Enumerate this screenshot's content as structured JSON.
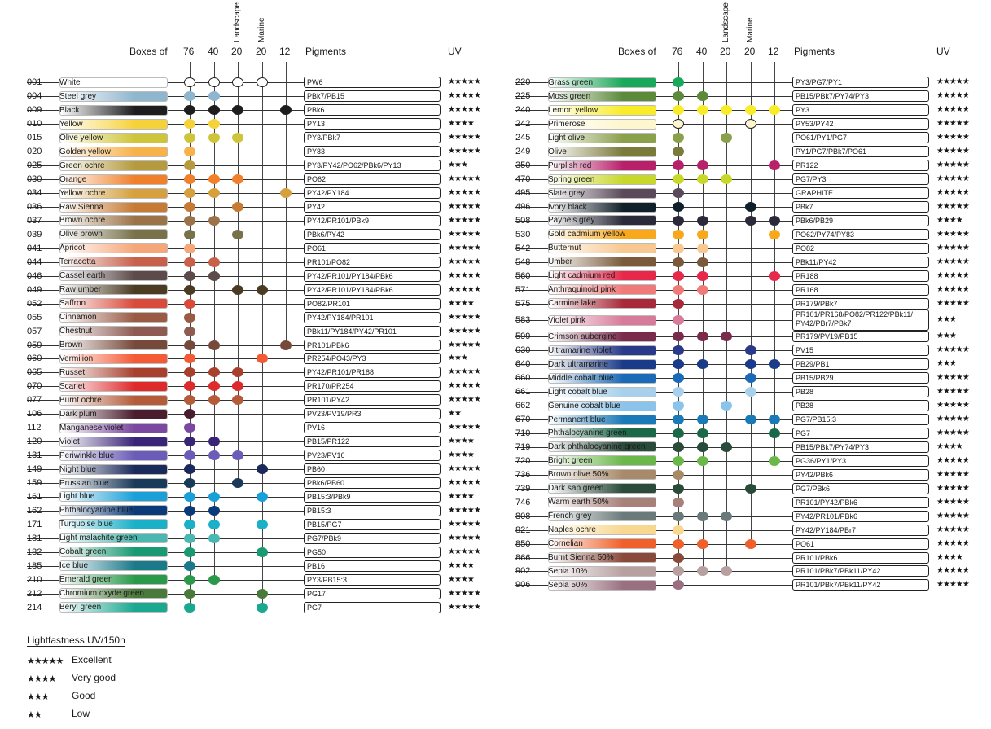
{
  "header": {
    "boxes_of": "Boxes of",
    "pigments": "Pigments",
    "uv": "UV",
    "box_76": "76",
    "box_40": "40",
    "box_20": "20",
    "box_20m": "20",
    "box_12": "12",
    "landscape": "Landscape",
    "marine": "Marine"
  },
  "legend": {
    "title": "Lightfastness UV/150h",
    "items": [
      {
        "stars": "★★★★★",
        "label": "Excellent"
      },
      {
        "stars": "★★★★",
        "label": "Very good"
      },
      {
        "stars": "★★★",
        "label": "Good"
      },
      {
        "stars": "★★",
        "label": "Low"
      }
    ]
  },
  "left_rows": [
    {
      "code": "001",
      "name": "White",
      "color": "#ffffff",
      "boxes": [
        1,
        1,
        1,
        1,
        0
      ],
      "pig": "PW6",
      "uv": "★★★★★"
    },
    {
      "code": "004",
      "name": "Steel grey",
      "color": "#8fb6cf",
      "boxes": [
        1,
        1,
        0,
        0,
        0
      ],
      "pig": "PBk7/PB15",
      "uv": "★★★★★"
    },
    {
      "code": "009",
      "name": "Black",
      "color": "#1d1d1d",
      "boxes": [
        1,
        1,
        1,
        0,
        1
      ],
      "pig": "PBk6",
      "uv": "★★★★★"
    },
    {
      "code": "010",
      "name": "Yellow",
      "color": "#f6d23a",
      "boxes": [
        1,
        1,
        0,
        0,
        0
      ],
      "pig": "PY13",
      "uv": "★★★★"
    },
    {
      "code": "015",
      "name": "Olive yellow",
      "color": "#cfc53a",
      "boxes": [
        1,
        1,
        1,
        0,
        0
      ],
      "pig": "PY3/PBk7",
      "uv": "★★★★★"
    },
    {
      "code": "020",
      "name": "Golden yellow",
      "color": "#f8b24a",
      "boxes": [
        1,
        0,
        0,
        0,
        0
      ],
      "pig": "PY83",
      "uv": "★★★★★"
    },
    {
      "code": "025",
      "name": "Green ochre",
      "color": "#b59a3e",
      "boxes": [
        1,
        0,
        0,
        0,
        0
      ],
      "pig": "PY3/PY42/PO62/PBk6/PY13",
      "uv": "★★★"
    },
    {
      "code": "030",
      "name": "Orange",
      "color": "#f0802a",
      "boxes": [
        1,
        1,
        1,
        0,
        0
      ],
      "pig": "PO62",
      "uv": "★★★★★"
    },
    {
      "code": "034",
      "name": "Yellow ochre",
      "color": "#d5a03d",
      "boxes": [
        1,
        1,
        0,
        0,
        1
      ],
      "pig": "PY42/PY184",
      "uv": "★★★★★"
    },
    {
      "code": "036",
      "name": "Raw Sienna",
      "color": "#c77a33",
      "boxes": [
        1,
        0,
        1,
        0,
        0
      ],
      "pig": "PY42",
      "uv": "★★★★★"
    },
    {
      "code": "037",
      "name": "Brown ochre",
      "color": "#9c7348",
      "boxes": [
        1,
        1,
        0,
        0,
        0
      ],
      "pig": "PY42/PR101/PBk9",
      "uv": "★★★★★"
    },
    {
      "code": "039",
      "name": "Olive brown",
      "color": "#78724a",
      "boxes": [
        1,
        0,
        1,
        0,
        0
      ],
      "pig": "PBk6/PY42",
      "uv": "★★★★★"
    },
    {
      "code": "041",
      "name": "Apricot",
      "color": "#f6a77a",
      "boxes": [
        1,
        0,
        0,
        0,
        0
      ],
      "pig": "PO61",
      "uv": "★★★★★"
    },
    {
      "code": "044",
      "name": "Terracotta",
      "color": "#c8614c",
      "boxes": [
        1,
        1,
        0,
        0,
        0
      ],
      "pig": "PR101/PO82",
      "uv": "★★★★★"
    },
    {
      "code": "046",
      "name": "Cassel earth",
      "color": "#5d4a4a",
      "boxes": [
        1,
        1,
        0,
        0,
        0
      ],
      "pig": "PY42/PR101/PY184/PBk6",
      "uv": "★★★★★"
    },
    {
      "code": "049",
      "name": "Raw umber",
      "color": "#4a3b22",
      "boxes": [
        1,
        0,
        1,
        1,
        0
      ],
      "pig": "PY42/PR101/PY184/PBk6",
      "uv": "★★★★★"
    },
    {
      "code": "052",
      "name": "Saffron",
      "color": "#d94a3a",
      "boxes": [
        1,
        0,
        0,
        0,
        0
      ],
      "pig": "PO82/PR101",
      "uv": "★★★★"
    },
    {
      "code": "055",
      "name": "Cinnamon",
      "color": "#9a5a44",
      "boxes": [
        1,
        0,
        0,
        0,
        0
      ],
      "pig": "PY42/PY184/PR101",
      "uv": "★★★★★"
    },
    {
      "code": "057",
      "name": "Chestnut",
      "color": "#8e5a52",
      "boxes": [
        1,
        0,
        0,
        0,
        0
      ],
      "pig": "PBk11/PY184/PY42/PR101",
      "uv": "★★★★★"
    },
    {
      "code": "059",
      "name": "Brown",
      "color": "#77493a",
      "boxes": [
        1,
        1,
        0,
        0,
        1
      ],
      "pig": "PR101/PBk6",
      "uv": "★★★★★"
    },
    {
      "code": "060",
      "name": "Vermilion",
      "color": "#f45a36",
      "boxes": [
        1,
        0,
        0,
        1,
        0
      ],
      "pig": "PR254/PO43/PY3",
      "uv": "★★★"
    },
    {
      "code": "065",
      "name": "Russet",
      "color": "#a8402e",
      "boxes": [
        1,
        1,
        1,
        0,
        0
      ],
      "pig": "PY42/PR101/PR188",
      "uv": "★★★★★"
    },
    {
      "code": "070",
      "name": "Scarlet",
      "color": "#de2a2a",
      "boxes": [
        1,
        1,
        1,
        0,
        0
      ],
      "pig": "PR170/PR254",
      "uv": "★★★★★"
    },
    {
      "code": "077",
      "name": "Burnt ochre",
      "color": "#b45c3a",
      "boxes": [
        1,
        1,
        1,
        0,
        0
      ],
      "pig": "PR101/PY42",
      "uv": "★★★★★"
    },
    {
      "code": "106",
      "name": "Dark plum",
      "color": "#4a1c2e",
      "boxes": [
        1,
        0,
        0,
        0,
        0
      ],
      "pig": "PV23/PV19/PR3",
      "uv": "★★"
    },
    {
      "code": "112",
      "name": "Manganese violet",
      "color": "#7a48a0",
      "boxes": [
        1,
        0,
        0,
        0,
        0
      ],
      "pig": "PV16",
      "uv": "★★★★★"
    },
    {
      "code": "120",
      "name": "Violet",
      "color": "#3a2478",
      "boxes": [
        1,
        1,
        0,
        0,
        0
      ],
      "pig": "PB15/PR122",
      "uv": "★★★★"
    },
    {
      "code": "131",
      "name": "Periwinkle blue",
      "color": "#6a5cb8",
      "boxes": [
        1,
        1,
        1,
        0,
        0
      ],
      "pig": "PV23/PV16",
      "uv": "★★★★"
    },
    {
      "code": "149",
      "name": "Night blue",
      "color": "#1a2a5a",
      "boxes": [
        1,
        0,
        0,
        1,
        0
      ],
      "pig": "PB60",
      "uv": "★★★★★"
    },
    {
      "code": "159",
      "name": "Prussian blue",
      "color": "#1a3a5a",
      "boxes": [
        1,
        0,
        1,
        0,
        0
      ],
      "pig": "PBk6/PB60",
      "uv": "★★★★★"
    },
    {
      "code": "161",
      "name": "Light blue",
      "color": "#1aa0d8",
      "boxes": [
        1,
        1,
        0,
        1,
        0
      ],
      "pig": "PB15:3/PBk9",
      "uv": "★★★★"
    },
    {
      "code": "162",
      "name": "Phthalocyanine blue",
      "color": "#0a3a78",
      "boxes": [
        1,
        1,
        0,
        0,
        0
      ],
      "pig": "PB15:3",
      "uv": "★★★★★"
    },
    {
      "code": "171",
      "name": "Turquoise blue",
      "color": "#1ab0c8",
      "boxes": [
        1,
        1,
        0,
        1,
        0
      ],
      "pig": "PB15/PG7",
      "uv": "★★★★★"
    },
    {
      "code": "181",
      "name": "Light malachite green",
      "color": "#4ab8b0",
      "boxes": [
        1,
        1,
        0,
        0,
        0
      ],
      "pig": "PG7/PBk9",
      "uv": "★★★★★"
    },
    {
      "code": "182",
      "name": "Cobalt green",
      "color": "#1a9a72",
      "boxes": [
        1,
        0,
        0,
        1,
        0
      ],
      "pig": "PG50",
      "uv": "★★★★★"
    },
    {
      "code": "185",
      "name": "Ice blue",
      "color": "#1a7a8a",
      "boxes": [
        1,
        0,
        0,
        0,
        0
      ],
      "pig": "PB16",
      "uv": "★★★★"
    },
    {
      "code": "210",
      "name": "Emerald green",
      "color": "#2a9a4a",
      "boxes": [
        1,
        1,
        0,
        0,
        0
      ],
      "pig": "PY3/PB15:3",
      "uv": "★★★★"
    },
    {
      "code": "212",
      "name": "Chromium oxyde green",
      "color": "#4a7a3a",
      "boxes": [
        1,
        0,
        0,
        1,
        0
      ],
      "pig": "PG17",
      "uv": "★★★★★"
    },
    {
      "code": "214",
      "name": "Beryl green",
      "color": "#1aa890",
      "boxes": [
        1,
        0,
        0,
        1,
        0
      ],
      "pig": "PG7",
      "uv": "★★★★★"
    }
  ],
  "right_rows": [
    {
      "code": "220",
      "name": "Grass green",
      "color": "#1aa85a",
      "boxes": [
        1,
        0,
        0,
        0,
        0
      ],
      "pig": "PY3/PG7/PY1",
      "uv": "★★★★★"
    },
    {
      "code": "225",
      "name": "Moss green",
      "color": "#5a8a3a",
      "boxes": [
        1,
        1,
        0,
        0,
        0
      ],
      "pig": "PB15/PBk7/PY74/PY3",
      "uv": "★★★★★"
    },
    {
      "code": "240",
      "name": "Lemon yellow",
      "color": "#f8ec2a",
      "boxes": [
        1,
        1,
        1,
        1,
        1
      ],
      "pig": "PY3",
      "uv": "★★★★★"
    },
    {
      "code": "242",
      "name": "Primerose",
      "color": "#fdf6cf",
      "boxes": [
        1,
        0,
        0,
        1,
        0
      ],
      "pig": "PY53/PY42",
      "uv": "★★★★★"
    },
    {
      "code": "245",
      "name": "Light olive",
      "color": "#8aa04a",
      "boxes": [
        1,
        0,
        1,
        0,
        0
      ],
      "pig": "PO61/PY1/PG7",
      "uv": "★★★★★"
    },
    {
      "code": "249",
      "name": "Olive",
      "color": "#7a7a3a",
      "boxes": [
        1,
        0,
        0,
        0,
        0
      ],
      "pig": "PY1/PG7/PBk7/PO61",
      "uv": "★★★★★"
    },
    {
      "code": "350",
      "name": "Purplish red",
      "color": "#b8206a",
      "boxes": [
        1,
        1,
        0,
        0,
        1
      ],
      "pig": "PR122",
      "uv": "★★★★★"
    },
    {
      "code": "470",
      "name": "Spring green",
      "color": "#c8d82a",
      "boxes": [
        1,
        1,
        1,
        0,
        0
      ],
      "pig": "PG7/PY3",
      "uv": "★★★★★"
    },
    {
      "code": "495",
      "name": "Slate grey",
      "color": "#5a4a5a",
      "boxes": [
        1,
        0,
        0,
        0,
        0
      ],
      "pig": "GRAPHITE",
      "uv": "★★★★★"
    },
    {
      "code": "496",
      "name": "Ivory black",
      "color": "#10202a",
      "boxes": [
        1,
        0,
        0,
        1,
        0
      ],
      "pig": "PBk7",
      "uv": "★★★★★"
    },
    {
      "code": "508",
      "name": "Payne's grey",
      "color": "#2a2a3a",
      "boxes": [
        1,
        1,
        0,
        1,
        1
      ],
      "pig": "PBk6/PB29",
      "uv": "★★★★"
    },
    {
      "code": "530",
      "name": "Gold cadmium yellow",
      "color": "#f8a81a",
      "boxes": [
        1,
        1,
        0,
        0,
        1
      ],
      "pig": "PO62/PY74/PY83",
      "uv": "★★★★★"
    },
    {
      "code": "542",
      "name": "Butternut",
      "color": "#f8c890",
      "boxes": [
        1,
        1,
        0,
        0,
        0
      ],
      "pig": "PO82",
      "uv": "★★★★★"
    },
    {
      "code": "548",
      "name": "Umber",
      "color": "#7a5a3a",
      "boxes": [
        1,
        1,
        0,
        0,
        0
      ],
      "pig": "PBk11/PY42",
      "uv": "★★★★★"
    },
    {
      "code": "560",
      "name": "Light cadmium red",
      "color": "#e8284a",
      "boxes": [
        1,
        1,
        0,
        0,
        1
      ],
      "pig": "PR188",
      "uv": "★★★★★"
    },
    {
      "code": "571",
      "name": "Anthraquinoid pink",
      "color": "#f07a7a",
      "boxes": [
        1,
        1,
        0,
        0,
        0
      ],
      "pig": "PR168",
      "uv": "★★★★★"
    },
    {
      "code": "575",
      "name": "Carmine lake",
      "color": "#a82a3a",
      "boxes": [
        1,
        0,
        0,
        0,
        0
      ],
      "pig": "PR179/PBk7",
      "uv": "★★★★★"
    },
    {
      "code": "583",
      "name": "Violet pink",
      "color": "#d87a9a",
      "boxes": [
        1,
        0,
        0,
        0,
        0
      ],
      "pig": "PR101/PR168/PO82/PR122/PBk11/ PY42/PBr7/PBk7",
      "uv": "★★★",
      "tall": true
    },
    {
      "code": "599",
      "name": "Crimson aubergine",
      "color": "#7a2a4a",
      "boxes": [
        1,
        1,
        1,
        0,
        0
      ],
      "pig": "PR179/PV19/PB15",
      "uv": "★★★"
    },
    {
      "code": "630",
      "name": "Ultramarine violet",
      "color": "#2a3a8a",
      "boxes": [
        1,
        0,
        0,
        1,
        0
      ],
      "pig": "PV15",
      "uv": "★★★★★"
    },
    {
      "code": "640",
      "name": "Dark ultramarine",
      "color": "#1a3a8a",
      "boxes": [
        1,
        1,
        0,
        1,
        1
      ],
      "pig": "PB29/PB1",
      "uv": "★★★"
    },
    {
      "code": "660",
      "name": "Middle cobalt blue",
      "color": "#1a6ab8",
      "boxes": [
        1,
        0,
        0,
        1,
        0
      ],
      "pig": "PB15/PB29",
      "uv": "★★★★★"
    },
    {
      "code": "661",
      "name": "Light cobalt blue",
      "color": "#a8d0ea",
      "boxes": [
        1,
        0,
        0,
        1,
        0
      ],
      "pig": "PB28",
      "uv": "★★★★★"
    },
    {
      "code": "662",
      "name": "Genuine cobalt blue",
      "color": "#8ac4ea",
      "boxes": [
        1,
        0,
        1,
        0,
        0
      ],
      "pig": "PB28",
      "uv": "★★★★★"
    },
    {
      "code": "670",
      "name": "Permanent blue",
      "color": "#1a7ab8",
      "boxes": [
        1,
        1,
        0,
        1,
        1
      ],
      "pig": "PG7/PB15:3",
      "uv": "★★★★★"
    },
    {
      "code": "710",
      "name": "Phthalocyanine green",
      "color": "#1a6a4a",
      "boxes": [
        1,
        1,
        0,
        0,
        1
      ],
      "pig": "PG7",
      "uv": "★★★★★"
    },
    {
      "code": "719",
      "name": "Dark phthalocyanine green",
      "color": "#2a4a3a",
      "boxes": [
        1,
        1,
        1,
        0,
        0
      ],
      "pig": "PB15/PBk7/PY74/PY3",
      "uv": "★★★★"
    },
    {
      "code": "720",
      "name": "Bright green",
      "color": "#6ab84a",
      "boxes": [
        1,
        1,
        0,
        0,
        1
      ],
      "pig": "PG36/PY1/PY3",
      "uv": "★★★★★"
    },
    {
      "code": "736",
      "name": "Brown olive 50%",
      "color": "#a88a6a",
      "boxes": [
        1,
        0,
        0,
        0,
        0
      ],
      "pig": "PY42/PBk6",
      "uv": "★★★★★"
    },
    {
      "code": "739",
      "name": "Dark sap green",
      "color": "#2a4a3a",
      "boxes": [
        1,
        0,
        0,
        1,
        0
      ],
      "pig": "PG7/PBk6",
      "uv": "★★★★★"
    },
    {
      "code": "746",
      "name": "Warm earth 50%",
      "color": "#a8807a",
      "boxes": [
        1,
        0,
        0,
        0,
        0
      ],
      "pig": "PR101/PY42/PBk6",
      "uv": "★★★★★"
    },
    {
      "code": "808",
      "name": "French grey",
      "color": "#6a7a7a",
      "boxes": [
        1,
        1,
        1,
        0,
        0
      ],
      "pig": "PY42/PR101/PBk6",
      "uv": "★★★★★"
    },
    {
      "code": "821",
      "name": "Naples ochre",
      "color": "#f8d890",
      "boxes": [
        1,
        0,
        0,
        0,
        0
      ],
      "pig": "PY42/PY184/PBr7",
      "uv": "★★★★★"
    },
    {
      "code": "850",
      "name": "Cornelian",
      "color": "#f0602a",
      "boxes": [
        1,
        1,
        0,
        1,
        0
      ],
      "pig": "PO61",
      "uv": "★★★★★"
    },
    {
      "code": "866",
      "name": "Burnt Sienna 50%",
      "color": "#8a4a3a",
      "boxes": [
        1,
        0,
        0,
        0,
        0
      ],
      "pig": "PR101/PBk6",
      "uv": "★★★★"
    },
    {
      "code": "902",
      "name": "Sepia 10%",
      "color": "#b8a0a0",
      "boxes": [
        1,
        1,
        1,
        0,
        0
      ],
      "pig": "PR101/PBk7/PBk11/PY42",
      "uv": "★★★★★"
    },
    {
      "code": "906",
      "name": "Sepia 50%",
      "color": "#9a7080",
      "boxes": [
        1,
        0,
        0,
        0,
        0
      ],
      "pig": "PR101/PBk7/PBk11/PY42",
      "uv": "★★★★★"
    }
  ]
}
